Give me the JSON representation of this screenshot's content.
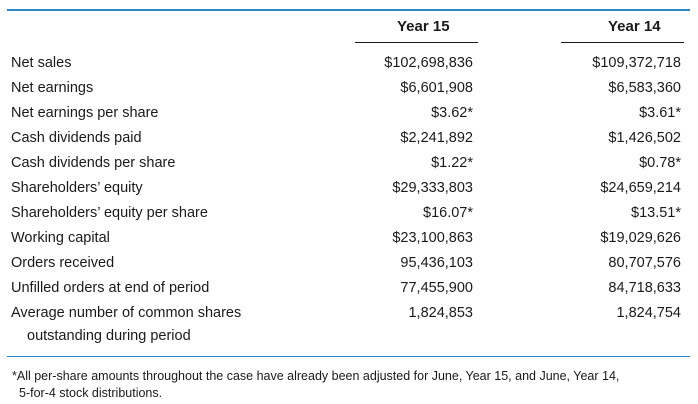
{
  "header": {
    "year15": "Year 15",
    "year14": "Year 14"
  },
  "rows": [
    {
      "label": "Net sales",
      "y15": "$102,698,836",
      "y14": "$109,372,718"
    },
    {
      "label": "Net earnings",
      "y15": "$6,601,908",
      "y14": "$6,583,360"
    },
    {
      "label": "Net earnings per share",
      "y15": "$3.62*",
      "y14": "$3.61*"
    },
    {
      "label": "Cash dividends paid",
      "y15": "$2,241,892",
      "y14": "$1,426,502"
    },
    {
      "label": "Cash dividends per share",
      "y15": "$1.22*",
      "y14": "$0.78*"
    },
    {
      "label": "Shareholders’ equity",
      "y15": "$29,333,803",
      "y14": "$24,659,214"
    },
    {
      "label": "Shareholders’ equity per share",
      "y15": "$16.07*",
      "y14": "$13.51*"
    },
    {
      "label": "Working capital",
      "y15": "$23,100,863",
      "y14": "$19,029,626"
    },
    {
      "label": "Orders received",
      "y15": "95,436,103",
      "y14": "80,707,576"
    },
    {
      "label": "Unfilled orders at end of period",
      "y15": "77,455,900",
      "y14": "84,718,633"
    },
    {
      "label": "Average number of common shares",
      "y15": "1,824,853",
      "y14": "1,824,754"
    }
  ],
  "row_continuation": "outstanding during period",
  "footnote": {
    "line1": "*All per-share amounts throughout the case have already been adjusted for June, Year 15, and June, Year 14,",
    "line2": "5-for-4 stock distributions."
  },
  "colors": {
    "rule": "#2a88c8",
    "text": "#1a1a1a"
  }
}
